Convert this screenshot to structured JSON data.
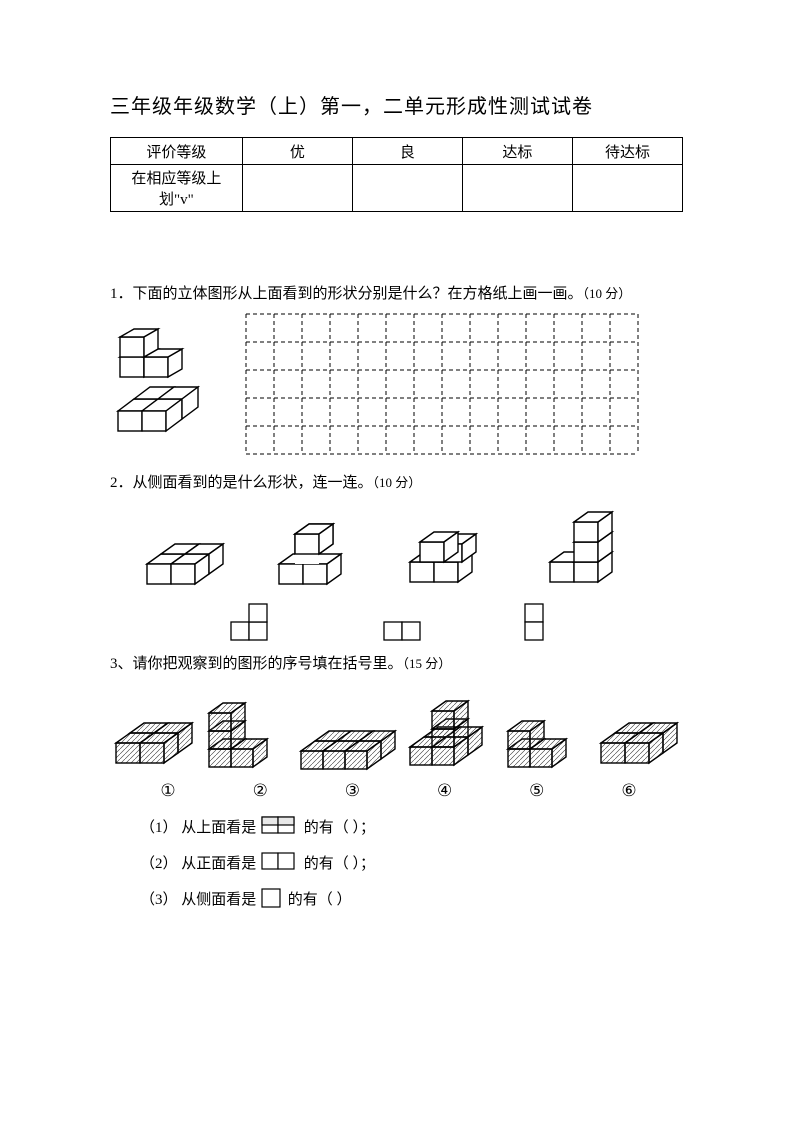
{
  "title": "三年级年级数学（上）第一，二单元形成性测试试卷",
  "gradeTable": {
    "r1c1": "评价等级",
    "cols": [
      "优",
      "良",
      "达标",
      "待达标"
    ],
    "r2c1a": "在相应等级上",
    "r2c1b": "划\"v\""
  },
  "q1": {
    "text": "1．下面的立体图形从上面看到的形状分别是什么？在方格纸上画一画。",
    "pts": "（10 分）",
    "grid": {
      "cols": 14,
      "rows": 5,
      "cell": 28
    }
  },
  "q2": {
    "text": "2．从侧面看到的是什么形状，连一连。",
    "pts": "（10 分）"
  },
  "q3": {
    "text": "3、请你把观察到的图形的序号填在括号里。",
    "pts": "（15 分）",
    "labels": [
      "①",
      "②",
      "③",
      "④",
      "⑤",
      "⑥"
    ],
    "sub1a": "（1）  从上面看是",
    "sub1b": "的有（               ）；",
    "sub2a": "（2）  从正面看是",
    "sub2b": "的有（               ）；",
    "sub3a": "（3）  从侧面看是",
    "sub3b": "的有（               ）"
  },
  "style": {
    "stroke": "#000000",
    "hatch": "#333333",
    "dash": "4,3",
    "cubeFill": "#ffffff"
  }
}
